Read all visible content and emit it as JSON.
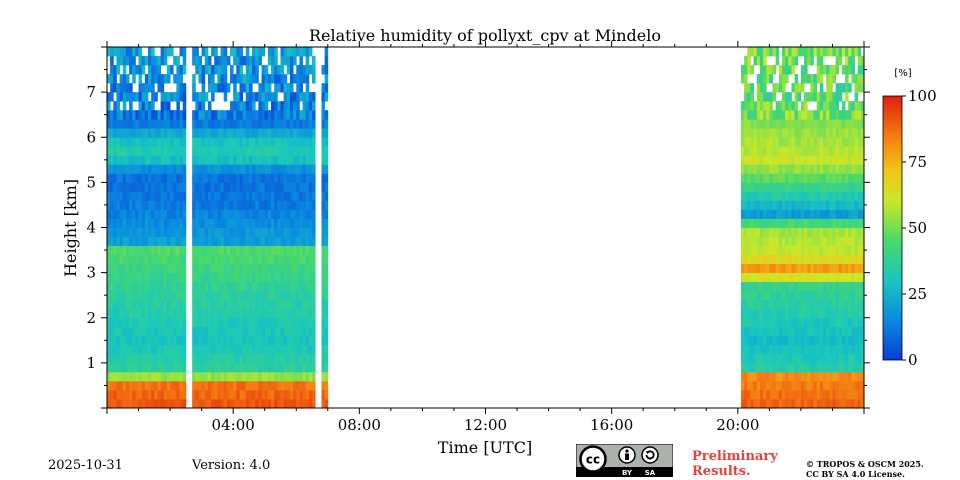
{
  "chart_data": {
    "type": "heatmap",
    "title": "Relative humidity of pollyxt_cpv at Mindelo",
    "xlabel": "Time [UTC]",
    "ylabel": "Height [km]",
    "xlim": [
      0,
      24
    ],
    "ylim": [
      0,
      8
    ],
    "x_ticks": [
      {
        "value": 4,
        "label": "04:00"
      },
      {
        "value": 8,
        "label": "08:00"
      },
      {
        "value": 12,
        "label": "12:00"
      },
      {
        "value": 16,
        "label": "16:00"
      },
      {
        "value": 20,
        "label": "20:00"
      }
    ],
    "y_ticks": [
      {
        "value": 1,
        "label": "1"
      },
      {
        "value": 2,
        "label": "2"
      },
      {
        "value": 3,
        "label": "3"
      },
      {
        "value": 4,
        "label": "4"
      },
      {
        "value": 5,
        "label": "5"
      },
      {
        "value": 6,
        "label": "6"
      },
      {
        "value": 7,
        "label": "7"
      }
    ],
    "colorbar": {
      "unit": "[%]",
      "range": [
        0,
        100
      ],
      "ticks": [
        {
          "value": 0,
          "label": "0"
        },
        {
          "value": 25,
          "label": "25"
        },
        {
          "value": 50,
          "label": "50"
        },
        {
          "value": 75,
          "label": "75"
        },
        {
          "value": 100,
          "label": "100"
        }
      ]
    },
    "data_segments": [
      {
        "name": "night-segment",
        "t_start": 0,
        "t_end": 7.0,
        "gaps": [
          [
            2.55,
            2.7
          ],
          [
            6.6,
            6.75
          ]
        ],
        "profile": [
          {
            "h": 0.0,
            "rh": 92
          },
          {
            "h": 0.6,
            "rh": 85
          },
          {
            "h": 0.75,
            "rh": 38
          },
          {
            "h": 1.5,
            "rh": 30
          },
          {
            "h": 2.5,
            "rh": 36
          },
          {
            "h": 3.5,
            "rh": 45
          },
          {
            "h": 3.7,
            "rh": 20
          },
          {
            "h": 4.5,
            "rh": 12
          },
          {
            "h": 5.2,
            "rh": 10
          },
          {
            "h": 5.6,
            "rh": 35
          },
          {
            "h": 6.0,
            "rh": 28
          },
          {
            "h": 6.3,
            "rh": 12
          },
          {
            "h": 8.0,
            "rh": 20
          }
        ]
      },
      {
        "name": "evening-segment",
        "t_start": 20.1,
        "t_end": 24.0,
        "gaps": [],
        "profile": [
          {
            "h": 0.0,
            "rh": 90
          },
          {
            "h": 0.7,
            "rh": 82
          },
          {
            "h": 0.8,
            "rh": 35
          },
          {
            "h": 1.5,
            "rh": 28
          },
          {
            "h": 2.8,
            "rh": 40
          },
          {
            "h": 3.0,
            "rh": 85
          },
          {
            "h": 3.4,
            "rh": 60
          },
          {
            "h": 4.0,
            "rh": 55
          },
          {
            "h": 4.3,
            "rh": 20
          },
          {
            "h": 4.6,
            "rh": 30
          },
          {
            "h": 5.5,
            "rh": 60
          },
          {
            "h": 7.0,
            "rh": 45
          },
          {
            "h": 8.0,
            "rh": 50
          }
        ]
      }
    ]
  },
  "footer": {
    "date": "2025-10-31",
    "version": "Version: 4.0",
    "preliminary": [
      "Preliminary",
      "Results."
    ],
    "copyright": [
      "© TROPOS & OSCM 2025.",
      "CC BY SA 4.0 License."
    ],
    "license_badge": {
      "main": "cc",
      "by": "BY",
      "sa": "SA"
    }
  }
}
